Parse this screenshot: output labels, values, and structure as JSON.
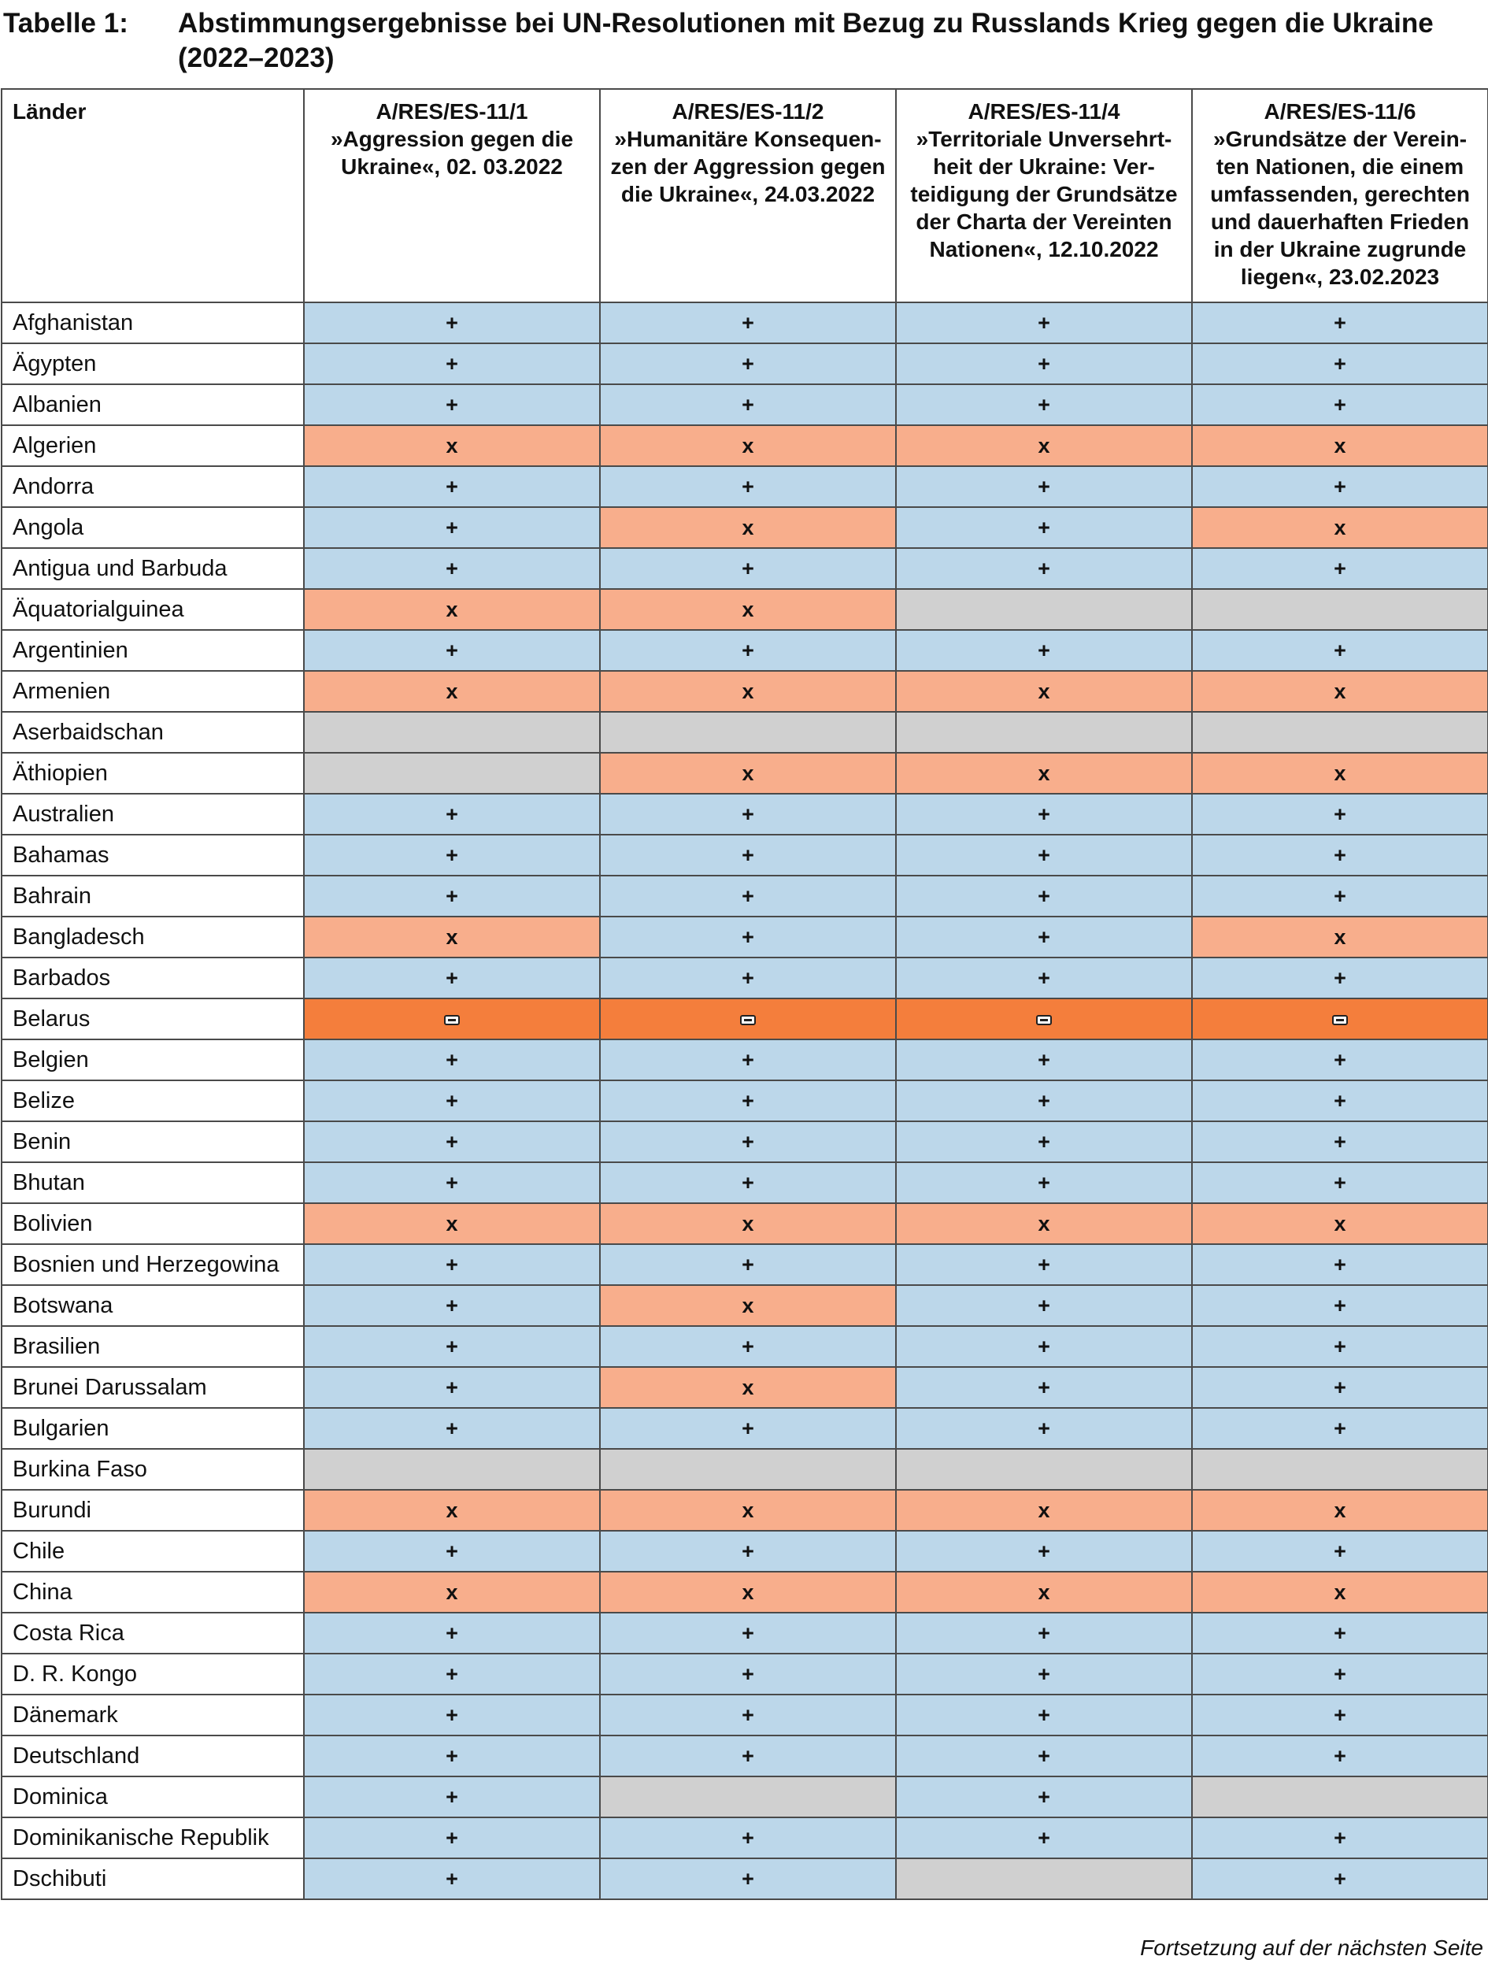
{
  "title": {
    "label": "Tabelle 1:",
    "text": "Abstimmungsergebnisse bei UN-Resolutionen mit Bezug zu Russlands Krieg gegen die Ukraine (2022–2023)"
  },
  "table": {
    "country_header": "Länder",
    "columns": [
      {
        "lines": [
          "A/RES/ES-11/1",
          "»Aggression gegen die",
          "Ukraine«, 02. 03.2022"
        ]
      },
      {
        "lines": [
          "A/RES/ES-11/2",
          "»Humanitäre Konsequen-",
          "zen der Aggression gegen",
          "die Ukraine«, 24.03.2022"
        ]
      },
      {
        "lines": [
          "A/RES/ES-11/4",
          "»Territoriale Unversehrt-",
          "heit der Ukraine: Ver-",
          "teidigung der Grundsätze",
          "der Charta der Vereinten",
          "Nationen«, 12.10.2022"
        ]
      },
      {
        "lines": [
          "A/RES/ES-11/6",
          "»Grundsätze der Verein-",
          "ten Nationen, die einem",
          "umfassenden, gerechten",
          "und dauerhaften Frieden",
          "in der Ukraine zugrunde",
          "liegen«, 23.02.2023"
        ]
      }
    ],
    "rows": [
      {
        "country": "Afghanistan",
        "votes": [
          "+",
          "+",
          "+",
          "+"
        ]
      },
      {
        "country": "Ägypten",
        "votes": [
          "+",
          "+",
          "+",
          "+"
        ]
      },
      {
        "country": "Albanien",
        "votes": [
          "+",
          "+",
          "+",
          "+"
        ]
      },
      {
        "country": "Algerien",
        "votes": [
          "x",
          "x",
          "x",
          "x"
        ]
      },
      {
        "country": "Andorra",
        "votes": [
          "+",
          "+",
          "+",
          "+"
        ]
      },
      {
        "country": "Angola",
        "votes": [
          "+",
          "x",
          "+",
          "x"
        ]
      },
      {
        "country": "Antigua und Barbuda",
        "votes": [
          "+",
          "+",
          "+",
          "+"
        ]
      },
      {
        "country": "Äquatorialguinea",
        "votes": [
          "x",
          "x",
          "",
          ""
        ]
      },
      {
        "country": "Argentinien",
        "votes": [
          "+",
          "+",
          "+",
          "+"
        ]
      },
      {
        "country": "Armenien",
        "votes": [
          "x",
          "x",
          "x",
          "x"
        ]
      },
      {
        "country": "Aserbaidschan",
        "votes": [
          "",
          "",
          "",
          ""
        ]
      },
      {
        "country": "Äthiopien",
        "votes": [
          "",
          "x",
          "x",
          "x"
        ]
      },
      {
        "country": "Australien",
        "votes": [
          "+",
          "+",
          "+",
          "+"
        ]
      },
      {
        "country": "Bahamas",
        "votes": [
          "+",
          "+",
          "+",
          "+"
        ]
      },
      {
        "country": "Bahrain",
        "votes": [
          "+",
          "+",
          "+",
          "+"
        ]
      },
      {
        "country": "Bangladesch",
        "votes": [
          "x",
          "+",
          "+",
          "x"
        ]
      },
      {
        "country": "Barbados",
        "votes": [
          "+",
          "+",
          "+",
          "+"
        ]
      },
      {
        "country": "Belarus",
        "votes": [
          "-",
          "-",
          "-",
          "-"
        ]
      },
      {
        "country": "Belgien",
        "votes": [
          "+",
          "+",
          "+",
          "+"
        ]
      },
      {
        "country": "Belize",
        "votes": [
          "+",
          "+",
          "+",
          "+"
        ]
      },
      {
        "country": "Benin",
        "votes": [
          "+",
          "+",
          "+",
          "+"
        ]
      },
      {
        "country": "Bhutan",
        "votes": [
          "+",
          "+",
          "+",
          "+"
        ]
      },
      {
        "country": "Bolivien",
        "votes": [
          "x",
          "x",
          "x",
          "x"
        ]
      },
      {
        "country": "Bosnien und Herzegowina",
        "votes": [
          "+",
          "+",
          "+",
          "+"
        ]
      },
      {
        "country": "Botswana",
        "votes": [
          "+",
          "x",
          "+",
          "+"
        ]
      },
      {
        "country": "Brasilien",
        "votes": [
          "+",
          "+",
          "+",
          "+"
        ]
      },
      {
        "country": "Brunei Darussalam",
        "votes": [
          "+",
          "x",
          "+",
          "+"
        ]
      },
      {
        "country": "Bulgarien",
        "votes": [
          "+",
          "+",
          "+",
          "+"
        ]
      },
      {
        "country": "Burkina Faso",
        "votes": [
          "",
          "",
          "",
          ""
        ]
      },
      {
        "country": "Burundi",
        "votes": [
          "x",
          "x",
          "x",
          "x"
        ]
      },
      {
        "country": "Chile",
        "votes": [
          "+",
          "+",
          "+",
          "+"
        ]
      },
      {
        "country": "China",
        "votes": [
          "x",
          "x",
          "x",
          "x"
        ]
      },
      {
        "country": "Costa Rica",
        "votes": [
          "+",
          "+",
          "+",
          "+"
        ]
      },
      {
        "country": "D. R. Kongo",
        "votes": [
          "+",
          "+",
          "+",
          "+"
        ]
      },
      {
        "country": "Dänemark",
        "votes": [
          "+",
          "+",
          "+",
          "+"
        ]
      },
      {
        "country": "Deutschland",
        "votes": [
          "+",
          "+",
          "+",
          "+"
        ]
      },
      {
        "country": "Dominica",
        "votes": [
          "+",
          "",
          "+",
          ""
        ]
      },
      {
        "country": "Dominikanische Republik",
        "votes": [
          "+",
          "+",
          "+",
          "+"
        ]
      },
      {
        "country": "Dschibuti",
        "votes": [
          "+",
          "+",
          "",
          "+"
        ]
      }
    ]
  },
  "footer": "Fortsetzung auf der nächsten Seite",
  "colors": {
    "yes": "#bcd7ea",
    "abstain": "#f8ae8c",
    "absent": "#d0d0d0",
    "no": "#f47e3c"
  }
}
